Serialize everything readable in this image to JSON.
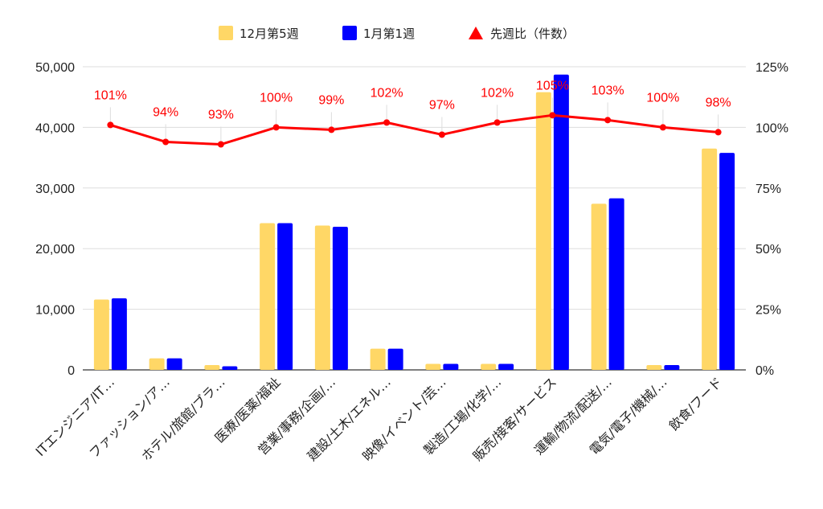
{
  "chart_data": {
    "type": "bar",
    "categories": [
      "ITエンジニア/IT…",
      "ファッション/ア…",
      "ホテル/旅館/ブラ…",
      "医療/医薬/福祉",
      "営業/事務/企画/…",
      "建設/土木/エネル…",
      "映像/イベント/芸…",
      "製造/工場/化学/…",
      "販売/接客/サービス",
      "運輸/物流/配送/…",
      "電気/電子/機械/…",
      "飲食/フード"
    ],
    "series": [
      {
        "name": "12月第5週",
        "color": "#FFD766",
        "values": [
          11600,
          1900,
          800,
          24200,
          23800,
          3500,
          1000,
          1000,
          45800,
          27400,
          800,
          36500
        ]
      },
      {
        "name": "1月第1週",
        "color": "#0000FF",
        "values": [
          11800,
          1900,
          600,
          24200,
          23600,
          3500,
          1000,
          1000,
          48700,
          28300,
          800,
          35800
        ]
      }
    ],
    "line_series": {
      "name": "先週比（件数）",
      "color": "#FF0000",
      "values": [
        101,
        94,
        93,
        100,
        99,
        102,
        97,
        102,
        105,
        103,
        100,
        98
      ],
      "labels": [
        "101%",
        "94%",
        "93%",
        "100%",
        "99%",
        "102%",
        "97%",
        "102%",
        "105%",
        "103%",
        "100%",
        "98%"
      ]
    },
    "y_left": {
      "ylim": [
        0,
        50000
      ],
      "ticks": [
        "0",
        "10,000",
        "20,000",
        "30,000",
        "40,000",
        "50,000"
      ]
    },
    "y_right": {
      "ylim": [
        0,
        125
      ],
      "ticks": [
        "0%",
        "25%",
        "50%",
        "75%",
        "100%",
        "125%"
      ]
    },
    "legend_position": "top-center",
    "grid": true
  }
}
